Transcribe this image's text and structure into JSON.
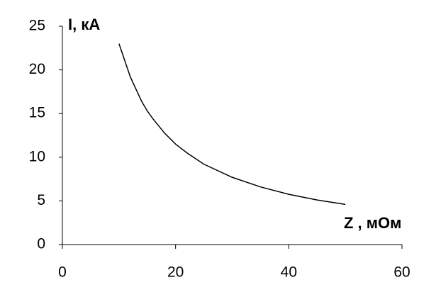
{
  "chart_data": {
    "type": "line",
    "x_label": "Z  , мОм",
    "y_label": "I, кА",
    "x": [
      10,
      12,
      14,
      15,
      16,
      18,
      20,
      22,
      25,
      30,
      35,
      40,
      45,
      50
    ],
    "series": [
      {
        "name": "I",
        "color": "#000000",
        "values": [
          23,
          19.2,
          16.4,
          15.3,
          14.4,
          12.8,
          11.5,
          10.5,
          9.2,
          7.7,
          6.6,
          5.75,
          5.1,
          4.6
        ]
      }
    ],
    "xlim": [
      0,
      60
    ],
    "xticks": [
      0,
      20,
      40,
      60
    ],
    "ylim": [
      0,
      25
    ],
    "yticks": [
      0,
      5,
      10,
      15,
      20,
      25
    ]
  }
}
